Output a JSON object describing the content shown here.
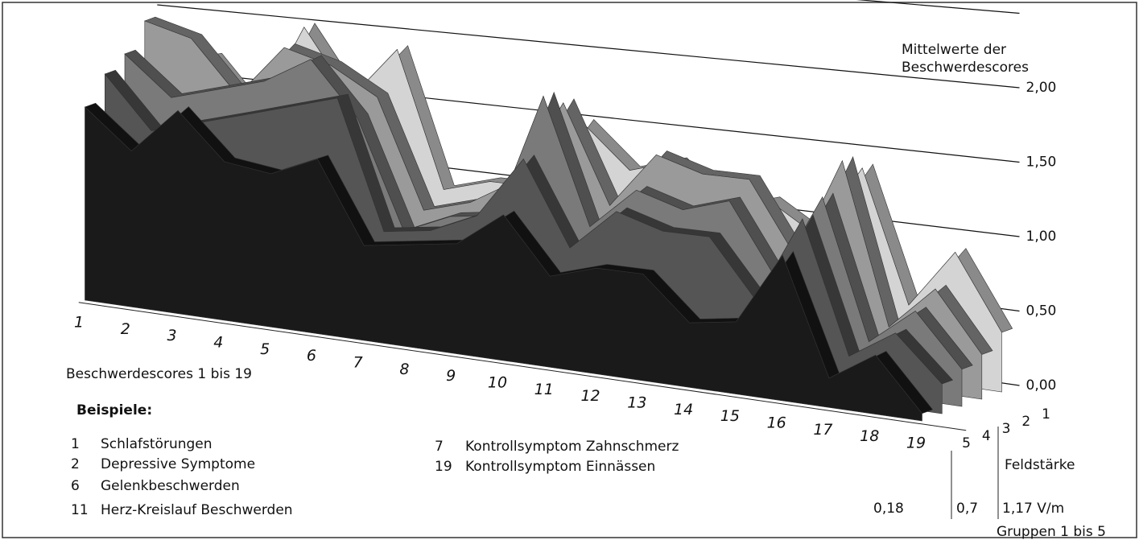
{
  "chart_data": {
    "type": "ribbon3d",
    "y_label_lines": [
      "Mittelwerte der",
      "Beschwerdescores"
    ],
    "x_label": "Beschwerdescores 1 bis 19",
    "categories": [
      "1",
      "2",
      "3",
      "4",
      "5",
      "6",
      "7",
      "8",
      "9",
      "10",
      "11",
      "12",
      "13",
      "14",
      "15",
      "16",
      "17",
      "18",
      "19"
    ],
    "ylim": [
      0,
      2.5
    ],
    "yticks": [
      {
        "value": 0,
        "label": "0,00"
      },
      {
        "value": 0.5,
        "label": "0,50"
      },
      {
        "value": 1,
        "label": "1,00"
      },
      {
        "value": 1.5,
        "label": "1,50"
      },
      {
        "value": 2,
        "label": "2,00"
      }
    ],
    "grid": true,
    "series": [
      {
        "name": "1",
        "color": "#d4d4d4",
        "values": [
          1.6,
          1.7,
          1.3,
          2.0,
          1.5,
          1.9,
          0.9,
          1.0,
          1.0,
          1.5,
          1.2,
          1.3,
          1.0,
          1.1,
          0.9,
          1.4,
          0.5,
          0.9,
          0.4
        ]
      },
      {
        "name": "2",
        "color": "#9a9a9a",
        "values": [
          2.0,
          1.9,
          1.5,
          1.9,
          1.8,
          1.6,
          0.8,
          0.9,
          1.1,
          1.7,
          1.0,
          1.4,
          1.3,
          1.3,
          0.8,
          1.5,
          0.4,
          0.7,
          0.3
        ]
      },
      {
        "name": "3",
        "color": "#7a7a7a",
        "values": [
          1.8,
          1.5,
          1.6,
          1.7,
          1.9,
          1.5,
          0.7,
          0.85,
          0.9,
          1.8,
          0.9,
          1.2,
          1.1,
          1.2,
          0.7,
          1.3,
          0.35,
          0.6,
          0.25
        ]
      },
      {
        "name": "4",
        "color": "#555555",
        "values": [
          1.7,
          1.3,
          1.4,
          1.5,
          1.6,
          1.7,
          0.75,
          0.8,
          0.95,
          1.4,
          0.8,
          1.1,
          1.0,
          1.0,
          0.6,
          1.2,
          0.3,
          0.5,
          0.2
        ]
      },
      {
        "name": "5",
        "color": "#1a1a1a",
        "values": [
          1.5,
          1.2,
          1.55,
          1.2,
          1.15,
          1.3,
          0.7,
          0.75,
          0.8,
          1.05,
          0.65,
          0.75,
          0.75,
          0.45,
          0.5,
          1.0,
          0.2,
          0.4,
          0.05
        ]
      }
    ],
    "group_axis_label": "Feldstärke",
    "field_values": [
      "0,18",
      "0,7",
      "1,17 V/m"
    ],
    "group_label": "Gruppen 1 bis 5",
    "examples_title": "Beispiele:",
    "examples": [
      {
        "number": "1",
        "text": "Schlafstörungen"
      },
      {
        "number": "2",
        "text": "Depressive Symptome"
      },
      {
        "number": "6",
        "text": "Gelenkbeschwerden"
      },
      {
        "number": "11",
        "text": "Herz-Kreislauf  Beschwerden"
      },
      {
        "number": "7",
        "text": "Kontrollsymptom  Zahnschmerz"
      },
      {
        "number": "19",
        "text": "Kontrollsymptom  Einnässen"
      }
    ]
  }
}
